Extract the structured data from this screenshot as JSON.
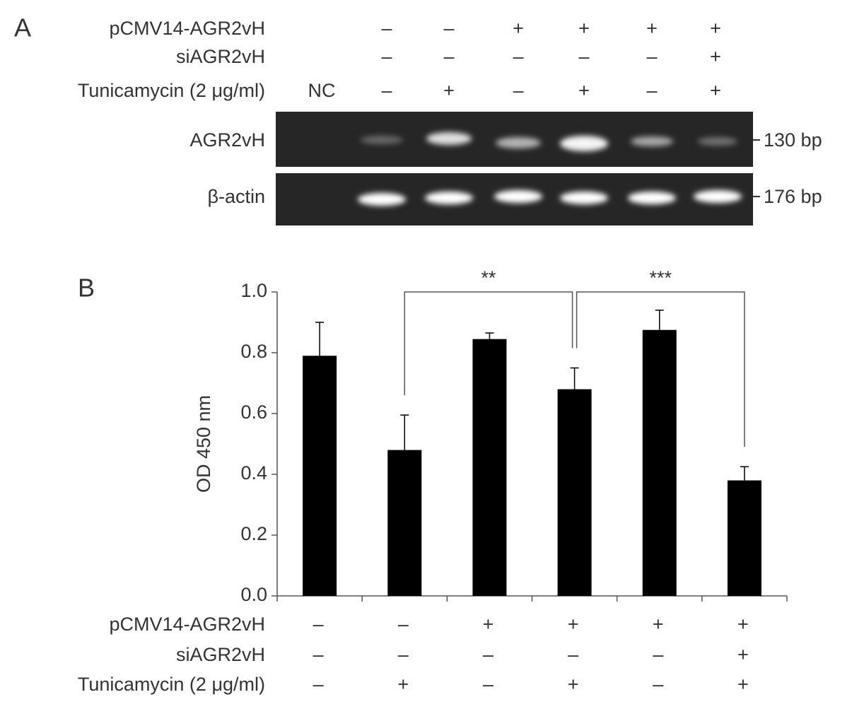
{
  "panel_labels": [
    "A",
    "B"
  ],
  "gel": {
    "conditions": [
      {
        "label": "pCMV14-AGR2vH",
        "signs": [
          null,
          "–",
          "–",
          "+",
          "+",
          "+",
          "+"
        ]
      },
      {
        "label": "siAGR2vH",
        "signs": [
          null,
          "–",
          "–",
          "–",
          "–",
          "–",
          "+"
        ]
      },
      {
        "label": "Tunicamycin (2 μg/ml)",
        "signs": [
          "NC",
          "–",
          "+",
          "–",
          "+",
          "–",
          "+"
        ]
      }
    ],
    "rows": [
      {
        "label": "AGR2vH",
        "size": "130 bp"
      },
      {
        "label": "β-actin",
        "size": "176 bp"
      }
    ]
  },
  "chart_data": {
    "type": "bar",
    "categories": [
      null,
      null,
      null,
      null,
      null,
      null
    ],
    "values": [
      0.79,
      0.48,
      0.845,
      0.68,
      0.875,
      0.38
    ],
    "errors": [
      0.11,
      0.115,
      0.02,
      0.07,
      0.065,
      0.045
    ],
    "color": "#000000",
    "ylabel": "OD 450 nm",
    "ylim": [
      0,
      1
    ],
    "yticks": [
      {
        "value": 0,
        "label": "0.0"
      },
      0.2,
      0.4,
      0.6,
      0.8,
      {
        "value": 1,
        "label": "1.0"
      }
    ],
    "annotations": [
      "**",
      "***"
    ],
    "conditions": [
      {
        "label": "pCMV14-AGR2vH",
        "signs": [
          "–",
          "–",
          "+",
          "+",
          "+",
          "+"
        ]
      },
      {
        "label": "siAGR2vH",
        "signs": [
          "–",
          "–",
          "–",
          "–",
          "–",
          "+"
        ]
      },
      {
        "label": "Tunicamycin (2 μg/ml)",
        "signs": [
          "–",
          "+",
          "–",
          "+",
          "–",
          "+"
        ]
      }
    ]
  }
}
